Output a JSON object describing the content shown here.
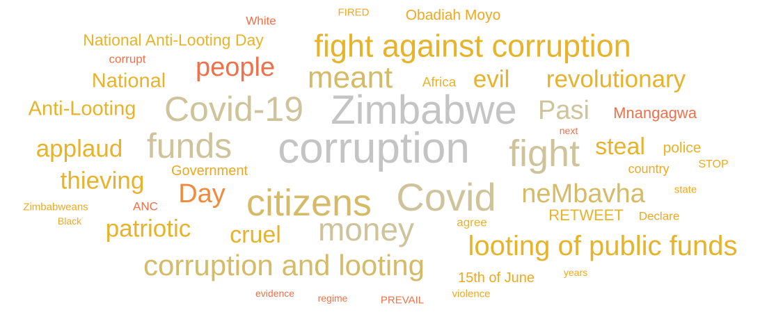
{
  "palette": {
    "gray": "#c4c4c4",
    "tan": "#cfc39b",
    "tan_gold": "#d5bb68",
    "gold": "#e6b32a",
    "amber": "#f0a820",
    "orange": "#f28a3c",
    "coral": "#f0704a"
  },
  "words": [
    {
      "text": "corruption",
      "weight": 100,
      "color": "#c4c4c4"
    },
    {
      "text": "Zimbabwe",
      "weight": 92,
      "color": "#c4c4c4"
    },
    {
      "text": "Covid",
      "weight": 78,
      "color": "#cfc39b"
    },
    {
      "text": "citizens",
      "weight": 70,
      "color": "#d5bb68"
    },
    {
      "text": "Covid-19",
      "weight": 72,
      "color": "#cfc39b"
    },
    {
      "text": "funds",
      "weight": 65,
      "color": "#cfc39b"
    },
    {
      "text": "fight",
      "weight": 65,
      "color": "#cfc39b"
    },
    {
      "text": "money",
      "weight": 60,
      "color": "#cfc39b"
    },
    {
      "text": "fight against corruption",
      "weight": 58,
      "color": "#e6b32a"
    },
    {
      "text": "meant",
      "weight": 55,
      "color": "#d5bb68"
    },
    {
      "text": "looting of public funds",
      "weight": 52,
      "color": "#e6b32a"
    },
    {
      "text": "corruption and looting",
      "weight": 52,
      "color": "#d5bb68"
    },
    {
      "text": "Pasi",
      "weight": 48,
      "color": "#cfc39b"
    },
    {
      "text": "neMbavha",
      "weight": 48,
      "color": "#d5bb68"
    },
    {
      "text": "people",
      "weight": 46,
      "color": "#f0704a"
    },
    {
      "text": "Day",
      "weight": 46,
      "color": "#f28a3c"
    },
    {
      "text": "revolutionary",
      "weight": 44,
      "color": "#e6b32a"
    },
    {
      "text": "evil",
      "weight": 42,
      "color": "#e6b32a"
    },
    {
      "text": "applaud",
      "weight": 42,
      "color": "#e6b32a"
    },
    {
      "text": "thieving",
      "weight": 42,
      "color": "#e6b32a"
    },
    {
      "text": "patriotic",
      "weight": 42,
      "color": "#e6b32a"
    },
    {
      "text": "cruel",
      "weight": 40,
      "color": "#e6b32a"
    },
    {
      "text": "steal",
      "weight": 40,
      "color": "#e6b32a"
    },
    {
      "text": "National",
      "weight": 35,
      "color": "#e6b32a"
    },
    {
      "text": "Anti-Looting",
      "weight": 35,
      "color": "#e6b32a"
    },
    {
      "text": "National Anti-Looting Day",
      "weight": 30,
      "color": "#e6b32a"
    },
    {
      "text": "Mnangagwa",
      "weight": 28,
      "color": "#f0704a"
    },
    {
      "text": "RETWEET",
      "weight": 28,
      "color": "#e6b32a"
    },
    {
      "text": "Obadiah Moyo",
      "weight": 26,
      "color": "#f0a820"
    },
    {
      "text": "police",
      "weight": 26,
      "color": "#e6b32a"
    },
    {
      "text": "Government",
      "weight": 25,
      "color": "#f0a820"
    },
    {
      "text": "15th of June",
      "weight": 25,
      "color": "#f0a820"
    },
    {
      "text": "Africa",
      "weight": 23,
      "color": "#e6b32a"
    },
    {
      "text": "country",
      "weight": 22,
      "color": "#f0a820"
    },
    {
      "text": "Declare",
      "weight": 21,
      "color": "#f0a820"
    },
    {
      "text": "agree",
      "weight": 20,
      "color": "#e6b32a"
    },
    {
      "text": "corrupt",
      "weight": 19,
      "color": "#f0704a"
    },
    {
      "text": "White",
      "weight": 19,
      "color": "#f0704a"
    },
    {
      "text": "ANC",
      "weight": 19,
      "color": "#f0704a"
    },
    {
      "text": "STOP",
      "weight": 18,
      "color": "#f0a820"
    },
    {
      "text": "state",
      "weight": 17,
      "color": "#f0a820"
    },
    {
      "text": "FIRED",
      "weight": 17,
      "color": "#f0a820"
    },
    {
      "text": "PREVAIL",
      "weight": 17,
      "color": "#f0704a"
    },
    {
      "text": "violence",
      "weight": 17,
      "color": "#f0a820"
    },
    {
      "text": "Zimbabweans",
      "weight": 17,
      "color": "#f0a820"
    },
    {
      "text": "evidence",
      "weight": 16,
      "color": "#f0704a"
    },
    {
      "text": "regime",
      "weight": 16,
      "color": "#f0704a"
    },
    {
      "text": "years",
      "weight": 15,
      "color": "#f0a820"
    },
    {
      "text": "next",
      "weight": 15,
      "color": "#f0704a"
    },
    {
      "text": "Black",
      "weight": 15,
      "color": "#f0a820"
    }
  ]
}
